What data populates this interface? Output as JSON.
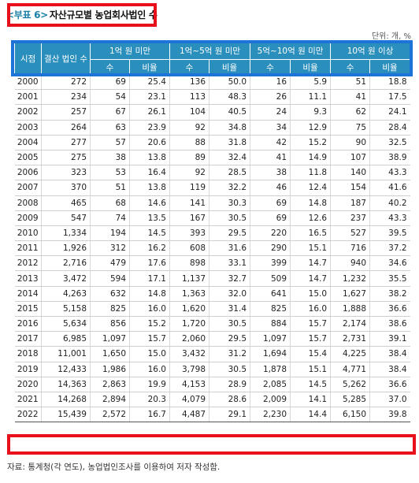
{
  "title": {
    "tag": "<부표 6>",
    "text": "자산규모별 농업회사법인 수"
  },
  "unit": "단위: 개, %",
  "table": {
    "col_year": "시점",
    "col_total": "결산 법인 수",
    "groups": [
      "1억 원 미만",
      "1억~5억 원 미만",
      "5억~10억 원 미만",
      "10억 원 이상"
    ],
    "sub": {
      "count": "수",
      "ratio": "비율"
    },
    "rows": [
      [
        "2000",
        "272",
        "69",
        "25.4",
        "136",
        "50.0",
        "16",
        "5.9",
        "51",
        "18.8"
      ],
      [
        "2001",
        "234",
        "54",
        "23.1",
        "113",
        "48.3",
        "26",
        "11.1",
        "41",
        "17.5"
      ],
      [
        "2002",
        "257",
        "67",
        "26.1",
        "104",
        "40.5",
        "24",
        "9.3",
        "62",
        "24.1"
      ],
      [
        "2003",
        "264",
        "63",
        "23.9",
        "92",
        "34.8",
        "34",
        "12.9",
        "75",
        "28.4"
      ],
      [
        "2004",
        "277",
        "57",
        "20.6",
        "88",
        "31.8",
        "42",
        "15.2",
        "90",
        "32.5"
      ],
      [
        "2005",
        "275",
        "38",
        "13.8",
        "89",
        "32.4",
        "41",
        "14.9",
        "107",
        "38.9"
      ],
      [
        "2006",
        "323",
        "53",
        "16.4",
        "92",
        "28.5",
        "38",
        "11.8",
        "140",
        "43.3"
      ],
      [
        "2007",
        "370",
        "51",
        "13.8",
        "119",
        "32.2",
        "46",
        "12.4",
        "154",
        "41.6"
      ],
      [
        "2008",
        "465",
        "68",
        "14.6",
        "141",
        "30.3",
        "69",
        "14.8",
        "187",
        "40.2"
      ],
      [
        "2009",
        "547",
        "74",
        "13.5",
        "167",
        "30.5",
        "69",
        "12.6",
        "237",
        "43.3"
      ],
      [
        "2010",
        "1,334",
        "194",
        "14.5",
        "393",
        "29.5",
        "220",
        "16.5",
        "527",
        "39.5"
      ],
      [
        "2011",
        "1,926",
        "312",
        "16.2",
        "608",
        "31.6",
        "290",
        "15.1",
        "716",
        "37.2"
      ],
      [
        "2012",
        "2,716",
        "479",
        "17.6",
        "898",
        "33.1",
        "399",
        "14.7",
        "940",
        "34.6"
      ],
      [
        "2013",
        "3,472",
        "594",
        "17.1",
        "1,137",
        "32.7",
        "509",
        "14.7",
        "1,232",
        "35.5"
      ],
      [
        "2014",
        "4,263",
        "632",
        "14.8",
        "1,363",
        "32.0",
        "641",
        "15.0",
        "1,627",
        "38.2"
      ],
      [
        "2015",
        "5,158",
        "825",
        "16.0",
        "1,620",
        "31.4",
        "825",
        "16.0",
        "1,888",
        "36.6"
      ],
      [
        "2016",
        "5,634",
        "856",
        "15.2",
        "1,720",
        "30.5",
        "884",
        "15.7",
        "2,174",
        "38.6"
      ],
      [
        "2017",
        "6,985",
        "1,097",
        "15.7",
        "2,060",
        "29.5",
        "1,097",
        "15.7",
        "2,731",
        "39.1"
      ],
      [
        "2018",
        "11,001",
        "1,650",
        "15.0",
        "3,432",
        "31.2",
        "1,694",
        "15.4",
        "4,225",
        "38.4"
      ],
      [
        "2019",
        "12,433",
        "1,986",
        "16.0",
        "3,798",
        "30.5",
        "1,878",
        "15.1",
        "4,771",
        "38.4"
      ],
      [
        "2020",
        "14,363",
        "2,863",
        "19.9",
        "4,153",
        "28.9",
        "2,085",
        "14.5",
        "5,262",
        "36.6"
      ],
      [
        "2021",
        "14,268",
        "2,894",
        "20.3",
        "4,079",
        "28.6",
        "2,009",
        "14.1",
        "5,285",
        "37.0"
      ],
      [
        "2022",
        "15,439",
        "2,572",
        "16.7",
        "4,487",
        "29.1",
        "2,230",
        "14.4",
        "6,150",
        "39.8"
      ]
    ]
  },
  "source": "자료: 통계청(각 연도), 농업법인조사를 이용하여 저자 작성함.",
  "colors": {
    "header_bg": "#2a8fbd",
    "highlight_red": "#e8101a",
    "highlight_blue": "#1e73d8"
  }
}
